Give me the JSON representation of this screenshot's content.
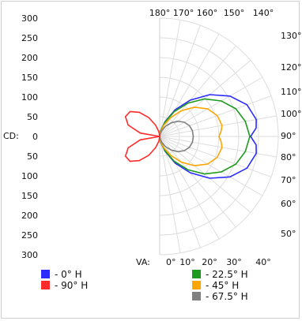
{
  "chart_data": {
    "type": "polar",
    "cd_axis_label": "CD:",
    "cd_ticks": [
      "300",
      "250",
      "200",
      "150",
      "100",
      "50",
      "0",
      "50",
      "100",
      "150",
      "200",
      "250",
      "300"
    ],
    "cd_max": 300,
    "va_axis_label": "VA:",
    "bottom_angle_labels": [
      "0°",
      "10°",
      "20°",
      "30°",
      "40°"
    ],
    "top_angle_labels": [
      "180°",
      "170°",
      "160°",
      "150°",
      "140°"
    ],
    "right_angle_labels": [
      "130°",
      "120°",
      "110°",
      "100°",
      "90°",
      "80°",
      "70°",
      "60°",
      "50°"
    ],
    "angle_unit": "deg",
    "grid": true,
    "legend_position": "bottom",
    "series": [
      {
        "name": "- 0° H",
        "color": "#2b2bff",
        "points": [
          [
            0,
            0
          ],
          [
            10,
            15
          ],
          [
            20,
            40
          ],
          [
            30,
            78
          ],
          [
            40,
            120
          ],
          [
            50,
            165
          ],
          [
            60,
            205
          ],
          [
            70,
            235
          ],
          [
            80,
            248
          ],
          [
            85,
            245
          ],
          [
            90,
            230
          ],
          [
            95,
            245
          ],
          [
            100,
            248
          ],
          [
            110,
            235
          ],
          [
            120,
            205
          ],
          [
            130,
            165
          ],
          [
            140,
            120
          ],
          [
            150,
            78
          ],
          [
            160,
            40
          ],
          [
            170,
            15
          ],
          [
            180,
            0
          ]
        ]
      },
      {
        "name": "- 22.5° H",
        "color": "#1f9a1f",
        "points": [
          [
            0,
            0
          ],
          [
            10,
            15
          ],
          [
            20,
            38
          ],
          [
            30,
            72
          ],
          [
            40,
            110
          ],
          [
            50,
            148
          ],
          [
            60,
            180
          ],
          [
            70,
            205
          ],
          [
            80,
            220
          ],
          [
            90,
            228
          ],
          [
            100,
            220
          ],
          [
            110,
            205
          ],
          [
            120,
            180
          ],
          [
            130,
            148
          ],
          [
            140,
            110
          ],
          [
            150,
            72
          ],
          [
            160,
            38
          ],
          [
            170,
            15
          ],
          [
            180,
            0
          ]
        ]
      },
      {
        "name": "- 45° H",
        "color": "#ffa500",
        "points": [
          [
            0,
            0
          ],
          [
            10,
            12
          ],
          [
            20,
            30
          ],
          [
            30,
            55
          ],
          [
            40,
            85
          ],
          [
            50,
            115
          ],
          [
            60,
            140
          ],
          [
            70,
            155
          ],
          [
            80,
            160
          ],
          [
            85,
            156
          ],
          [
            90,
            150
          ],
          [
            95,
            156
          ],
          [
            100,
            160
          ],
          [
            110,
            155
          ],
          [
            120,
            140
          ],
          [
            130,
            115
          ],
          [
            140,
            85
          ],
          [
            150,
            55
          ],
          [
            160,
            30
          ],
          [
            170,
            12
          ],
          [
            180,
            0
          ]
        ]
      },
      {
        "name": "- 67.5° H",
        "color": "#808080",
        "points": [
          [
            0,
            0
          ],
          [
            10,
            6
          ],
          [
            20,
            16
          ],
          [
            30,
            30
          ],
          [
            40,
            45
          ],
          [
            50,
            60
          ],
          [
            60,
            72
          ],
          [
            70,
            80
          ],
          [
            80,
            84
          ],
          [
            90,
            85
          ],
          [
            100,
            84
          ],
          [
            110,
            80
          ],
          [
            120,
            72
          ],
          [
            130,
            60
          ],
          [
            140,
            45
          ],
          [
            150,
            30
          ],
          [
            160,
            16
          ],
          [
            170,
            6
          ],
          [
            180,
            0
          ]
        ]
      },
      {
        "name": "- 90° H",
        "color": "#ff2a2a",
        "side": "left",
        "points": [
          [
            0,
            0
          ],
          [
            10,
            12
          ],
          [
            20,
            30
          ],
          [
            30,
            55
          ],
          [
            40,
            80
          ],
          [
            50,
            98
          ],
          [
            60,
            100
          ],
          [
            70,
            85
          ],
          [
            80,
            50
          ],
          [
            90,
            0
          ],
          [
            100,
            50
          ],
          [
            110,
            85
          ],
          [
            120,
            100
          ],
          [
            130,
            98
          ],
          [
            140,
            80
          ],
          [
            150,
            55
          ],
          [
            160,
            30
          ],
          [
            170,
            12
          ],
          [
            180,
            0
          ]
        ]
      }
    ],
    "legend_left": [
      "- 0° H",
      "- 90° H"
    ],
    "legend_right": [
      "- 22.5° H",
      "- 45° H",
      "- 67.5° H"
    ]
  }
}
